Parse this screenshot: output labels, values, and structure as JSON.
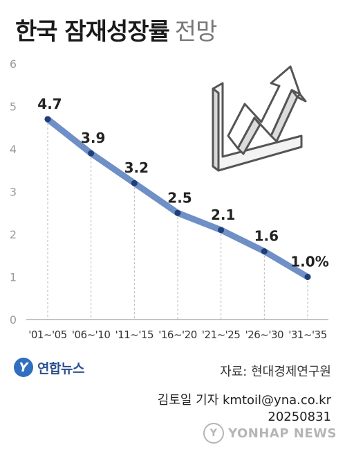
{
  "title": {
    "main": "한국 잠재성장률",
    "sub": "전망"
  },
  "chart_data": {
    "type": "line",
    "categories": [
      "'01~'05",
      "'06~'10",
      "'11~'15",
      "'16~'20",
      "'21~'25",
      "'26~'30",
      "'31~'35"
    ],
    "values": [
      4.7,
      3.9,
      3.2,
      2.5,
      2.1,
      1.6,
      1.0
    ],
    "data_labels": [
      "4.7",
      "3.9",
      "3.2",
      "2.5",
      "2.1",
      "1.6",
      "1.0%"
    ],
    "yticks": [
      "0",
      "1",
      "2",
      "3",
      "4",
      "5",
      "6"
    ],
    "ylim": [
      0,
      6
    ],
    "grid": "vertical dashed drop lines",
    "colors": {
      "line": "#6f8fc7",
      "marker": "#1f3f7a",
      "label": "#222222"
    }
  },
  "logo": {
    "mark": "Y",
    "text": "연합뉴스"
  },
  "source": "자료: 현대경제연구원",
  "credit": {
    "reporter": "김토일 기자 kmtoil@yna.co.kr",
    "date": "20250831"
  },
  "watermark": {
    "icon": "Y",
    "text": "YONHAP NEWS"
  }
}
